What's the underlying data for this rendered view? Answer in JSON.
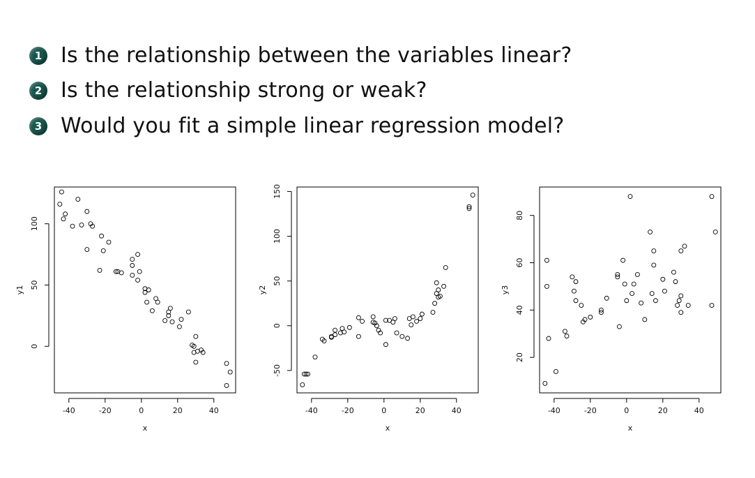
{
  "questions": [
    {
      "num": "1",
      "text": "Is the relationship between the variables linear?"
    },
    {
      "num": "2",
      "text": "Is the relationship strong or weak?"
    },
    {
      "num": "3",
      "text": "Would you fit a simple linear regression model?"
    }
  ],
  "chart_data": [
    {
      "type": "scatter",
      "xlabel": "x",
      "ylabel": "y1",
      "xlim": [
        -48,
        52
      ],
      "ylim": [
        -38,
        130
      ],
      "xticks": [
        -40,
        -20,
        0,
        20,
        40
      ],
      "yticks": [
        0,
        50,
        100
      ],
      "grid": false,
      "points": [
        [
          -44,
          126
        ],
        [
          -45,
          116
        ],
        [
          -43,
          104
        ],
        [
          -42,
          108
        ],
        [
          -38,
          98
        ],
        [
          -35,
          120
        ],
        [
          -33,
          99
        ],
        [
          -30,
          110
        ],
        [
          -28,
          100
        ],
        [
          -27,
          98
        ],
        [
          -30,
          79
        ],
        [
          -22,
          90
        ],
        [
          -21,
          78
        ],
        [
          -18,
          85
        ],
        [
          -23,
          62
        ],
        [
          -14,
          61
        ],
        [
          -13,
          61
        ],
        [
          -11,
          60
        ],
        [
          -5,
          71
        ],
        [
          -5,
          66
        ],
        [
          -2,
          75
        ],
        [
          -5,
          58
        ],
        [
          -2,
          54
        ],
        [
          -1,
          61
        ],
        [
          2,
          47
        ],
        [
          2,
          44
        ],
        [
          4,
          46
        ],
        [
          3,
          36
        ],
        [
          6,
          29
        ],
        [
          8,
          39
        ],
        [
          9,
          36
        ],
        [
          13,
          21
        ],
        [
          15,
          25
        ],
        [
          15,
          28
        ],
        [
          16,
          31
        ],
        [
          17,
          20
        ],
        [
          21,
          16
        ],
        [
          22,
          22
        ],
        [
          26,
          28
        ],
        [
          28,
          1
        ],
        [
          29,
          0
        ],
        [
          29,
          -5
        ],
        [
          30,
          8
        ],
        [
          31,
          -4
        ],
        [
          30,
          -13
        ],
        [
          33,
          -3
        ],
        [
          34,
          -5
        ],
        [
          47,
          -14
        ],
        [
          47,
          -32
        ],
        [
          49,
          -21
        ]
      ]
    },
    {
      "type": "scatter",
      "xlabel": "x",
      "ylabel": "y2",
      "xlim": [
        -48,
        52
      ],
      "ylim": [
        -75,
        155
      ],
      "xticks": [
        -40,
        -20,
        0,
        20,
        40
      ],
      "yticks": [
        -50,
        0,
        50,
        100,
        150
      ],
      "grid": false,
      "points": [
        [
          -45,
          -66
        ],
        [
          -44,
          -54
        ],
        [
          -43,
          -54
        ],
        [
          -42,
          -54
        ],
        [
          -38,
          -35
        ],
        [
          -34,
          -15
        ],
        [
          -33,
          -17
        ],
        [
          -29,
          -13
        ],
        [
          -29,
          -12
        ],
        [
          -27,
          -10
        ],
        [
          -27,
          -5
        ],
        [
          -24,
          -8
        ],
        [
          -23,
          -3
        ],
        [
          -22,
          -7
        ],
        [
          -19,
          -2
        ],
        [
          -14,
          -12
        ],
        [
          -14,
          9
        ],
        [
          -12,
          5
        ],
        [
          -6,
          4
        ],
        [
          -6,
          10
        ],
        [
          -5,
          3
        ],
        [
          -4,
          0
        ],
        [
          -3,
          -5
        ],
        [
          -2,
          -8
        ],
        [
          1,
          6
        ],
        [
          1,
          -21
        ],
        [
          3,
          6
        ],
        [
          5,
          4
        ],
        [
          6,
          8
        ],
        [
          7,
          -8
        ],
        [
          10,
          -12
        ],
        [
          13,
          -14
        ],
        [
          14,
          8
        ],
        [
          15,
          1
        ],
        [
          16,
          10
        ],
        [
          18,
          5
        ],
        [
          20,
          8
        ],
        [
          21,
          13
        ],
        [
          27,
          15
        ],
        [
          28,
          25
        ],
        [
          29,
          36
        ],
        [
          29,
          48
        ],
        [
          30,
          32
        ],
        [
          30,
          40
        ],
        [
          31,
          33
        ],
        [
          33,
          44
        ],
        [
          34,
          65
        ],
        [
          47,
          131
        ],
        [
          47,
          133
        ],
        [
          49,
          146
        ]
      ]
    },
    {
      "type": "scatter",
      "xlabel": "x",
      "ylabel": "y3",
      "xlim": [
        -48,
        52
      ],
      "ylim": [
        5,
        92
      ],
      "xticks": [
        -40,
        -20,
        0,
        20,
        40
      ],
      "yticks": [
        20,
        40,
        60,
        80
      ],
      "grid": false,
      "points": [
        [
          -45,
          9
        ],
        [
          -44,
          61
        ],
        [
          -44,
          50
        ],
        [
          -43,
          28
        ],
        [
          -39,
          14
        ],
        [
          -34,
          31
        ],
        [
          -33,
          29
        ],
        [
          -30,
          54
        ],
        [
          -29,
          48
        ],
        [
          -28,
          52
        ],
        [
          -28,
          44
        ],
        [
          -25,
          42
        ],
        [
          -24,
          35
        ],
        [
          -23,
          36
        ],
        [
          -20,
          37
        ],
        [
          -14,
          40
        ],
        [
          -14,
          39
        ],
        [
          -11,
          45
        ],
        [
          -5,
          55
        ],
        [
          -5,
          54
        ],
        [
          -4,
          33
        ],
        [
          -2,
          61
        ],
        [
          -1,
          51
        ],
        [
          0,
          44
        ],
        [
          2,
          88
        ],
        [
          3,
          47
        ],
        [
          4,
          51
        ],
        [
          6,
          55
        ],
        [
          8,
          43
        ],
        [
          10,
          36
        ],
        [
          13,
          73
        ],
        [
          14,
          47
        ],
        [
          15,
          65
        ],
        [
          15,
          59
        ],
        [
          16,
          44
        ],
        [
          20,
          53
        ],
        [
          21,
          48
        ],
        [
          26,
          56
        ],
        [
          27,
          52
        ],
        [
          28,
          42
        ],
        [
          29,
          44
        ],
        [
          30,
          46
        ],
        [
          30,
          39
        ],
        [
          30,
          65
        ],
        [
          32,
          67
        ],
        [
          34,
          42
        ],
        [
          47,
          88
        ],
        [
          47,
          42
        ],
        [
          49,
          73
        ]
      ]
    }
  ]
}
